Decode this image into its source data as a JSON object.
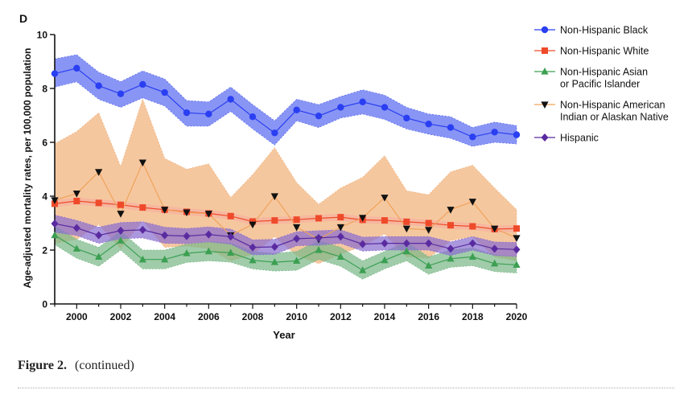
{
  "panel_label": "D",
  "caption": {
    "label": "Figure 2.",
    "text": "(continued)"
  },
  "chart_data": {
    "type": "line",
    "xlabel": "Year",
    "ylabel": "Age-adjusted mortality rates, per 100,000 population",
    "xlim": [
      1999,
      2020
    ],
    "ylim": [
      0,
      10
    ],
    "xticks": [
      2000,
      2002,
      2004,
      2006,
      2008,
      2010,
      2012,
      2014,
      2016,
      2018,
      2020
    ],
    "yticks": [
      0,
      2,
      4,
      6,
      8,
      10
    ],
    "grid": false,
    "legend_position": "right",
    "x": [
      1999,
      2000,
      2001,
      2002,
      2003,
      2004,
      2005,
      2006,
      2007,
      2008,
      2009,
      2010,
      2011,
      2012,
      2013,
      2014,
      2015,
      2016,
      2017,
      2018,
      2019,
      2020
    ],
    "series": [
      {
        "name": "Non-Hispanic Black",
        "marker": "circle",
        "color": "#2a3ff2",
        "band_color": "#5b6cf0",
        "values": [
          8.55,
          8.75,
          8.1,
          7.8,
          8.15,
          7.85,
          7.1,
          7.05,
          7.6,
          6.95,
          6.35,
          7.2,
          6.98,
          7.3,
          7.5,
          7.3,
          6.9,
          6.68,
          6.55,
          6.2,
          6.38,
          6.28
        ],
        "upper": [
          9.1,
          9.25,
          8.6,
          8.25,
          8.65,
          8.35,
          7.55,
          7.5,
          8.05,
          7.4,
          6.8,
          7.6,
          7.4,
          7.7,
          7.95,
          7.75,
          7.3,
          7.05,
          6.95,
          6.55,
          6.75,
          6.62
        ],
        "lower": [
          8.05,
          8.25,
          7.6,
          7.3,
          7.65,
          7.35,
          6.6,
          6.6,
          7.15,
          6.5,
          5.9,
          6.8,
          6.55,
          6.9,
          7.05,
          6.85,
          6.5,
          6.3,
          6.15,
          5.85,
          6.0,
          5.94
        ]
      },
      {
        "name": "Non-Hispanic White",
        "marker": "square",
        "color": "#ee4a2a",
        "band_color": "#f7b19f",
        "values": [
          3.72,
          3.82,
          3.75,
          3.68,
          3.58,
          3.5,
          3.42,
          3.36,
          3.26,
          3.06,
          3.1,
          3.13,
          3.18,
          3.22,
          3.12,
          3.1,
          3.05,
          3.0,
          2.92,
          2.88,
          2.78,
          2.8
        ],
        "upper": [
          3.84,
          3.94,
          3.87,
          3.8,
          3.7,
          3.62,
          3.54,
          3.48,
          3.38,
          3.18,
          3.22,
          3.25,
          3.3,
          3.34,
          3.24,
          3.22,
          3.17,
          3.12,
          3.04,
          3.0,
          2.9,
          2.92
        ],
        "lower": [
          3.6,
          3.7,
          3.63,
          3.56,
          3.46,
          3.38,
          3.3,
          3.24,
          3.14,
          2.94,
          2.98,
          3.01,
          3.06,
          3.1,
          3.0,
          2.98,
          2.93,
          2.88,
          2.8,
          2.76,
          2.66,
          2.68
        ]
      },
      {
        "name": "Non-Hispanic Asian\nor Pacific Islander",
        "marker": "triangle-up",
        "color": "#3c9f52",
        "band_color": "#7cb889",
        "values": [
          2.55,
          2.05,
          1.75,
          2.35,
          1.65,
          1.65,
          1.88,
          1.95,
          1.9,
          1.62,
          1.55,
          1.6,
          2.0,
          1.75,
          1.25,
          1.62,
          1.95,
          1.42,
          1.68,
          1.75,
          1.5,
          1.45
        ],
        "upper": [
          2.9,
          2.4,
          2.1,
          2.7,
          2.0,
          2.0,
          2.22,
          2.3,
          2.25,
          1.95,
          1.88,
          1.95,
          2.35,
          2.1,
          1.6,
          1.95,
          2.3,
          1.75,
          2.0,
          2.08,
          1.82,
          1.75
        ],
        "lower": [
          2.2,
          1.7,
          1.4,
          2.0,
          1.3,
          1.3,
          1.54,
          1.6,
          1.55,
          1.3,
          1.22,
          1.25,
          1.65,
          1.4,
          0.92,
          1.3,
          1.6,
          1.1,
          1.36,
          1.42,
          1.2,
          1.15
        ]
      },
      {
        "name": "Non-Hispanic American\nIndian or Alaskan Native",
        "marker": "triangle-down",
        "color": "#111111",
        "line_color": "#f0a35a",
        "band_color": "#f1b47f",
        "values": [
          3.85,
          4.1,
          4.9,
          3.35,
          5.25,
          3.5,
          3.4,
          3.35,
          2.55,
          2.95,
          4.0,
          2.85,
          2.4,
          2.85,
          3.2,
          3.95,
          2.8,
          2.75,
          3.5,
          3.8,
          2.8,
          2.45
        ],
        "upper": [
          5.95,
          6.4,
          7.1,
          5.1,
          7.6,
          5.4,
          5.0,
          5.2,
          3.95,
          4.8,
          5.8,
          4.5,
          3.7,
          4.3,
          4.7,
          5.5,
          4.2,
          4.05,
          4.9,
          5.15,
          4.3,
          3.5
        ],
        "lower": [
          2.25,
          2.4,
          2.95,
          2.05,
          3.1,
          2.1,
          2.15,
          2.05,
          1.6,
          1.85,
          2.5,
          1.8,
          1.5,
          1.85,
          2.15,
          2.6,
          1.75,
          1.7,
          2.35,
          2.5,
          1.75,
          1.6
        ]
      },
      {
        "name": "Hispanic",
        "marker": "diamond",
        "color": "#5a2ba0",
        "band_color": "#8a6fd0",
        "values": [
          2.98,
          2.82,
          2.55,
          2.72,
          2.75,
          2.55,
          2.52,
          2.58,
          2.5,
          2.1,
          2.12,
          2.42,
          2.45,
          2.5,
          2.22,
          2.25,
          2.25,
          2.25,
          2.05,
          2.25,
          2.05,
          2.02
        ],
        "upper": [
          3.3,
          3.1,
          2.85,
          3.02,
          3.05,
          2.85,
          2.8,
          2.86,
          2.78,
          2.38,
          2.4,
          2.68,
          2.72,
          2.75,
          2.48,
          2.5,
          2.5,
          2.5,
          2.3,
          2.5,
          2.3,
          2.28
        ],
        "lower": [
          2.66,
          2.54,
          2.25,
          2.42,
          2.45,
          2.25,
          2.24,
          2.3,
          2.22,
          1.82,
          1.84,
          2.16,
          2.18,
          2.25,
          1.96,
          2.0,
          2.0,
          2.0,
          1.8,
          2.0,
          1.8,
          1.76
        ]
      }
    ]
  }
}
